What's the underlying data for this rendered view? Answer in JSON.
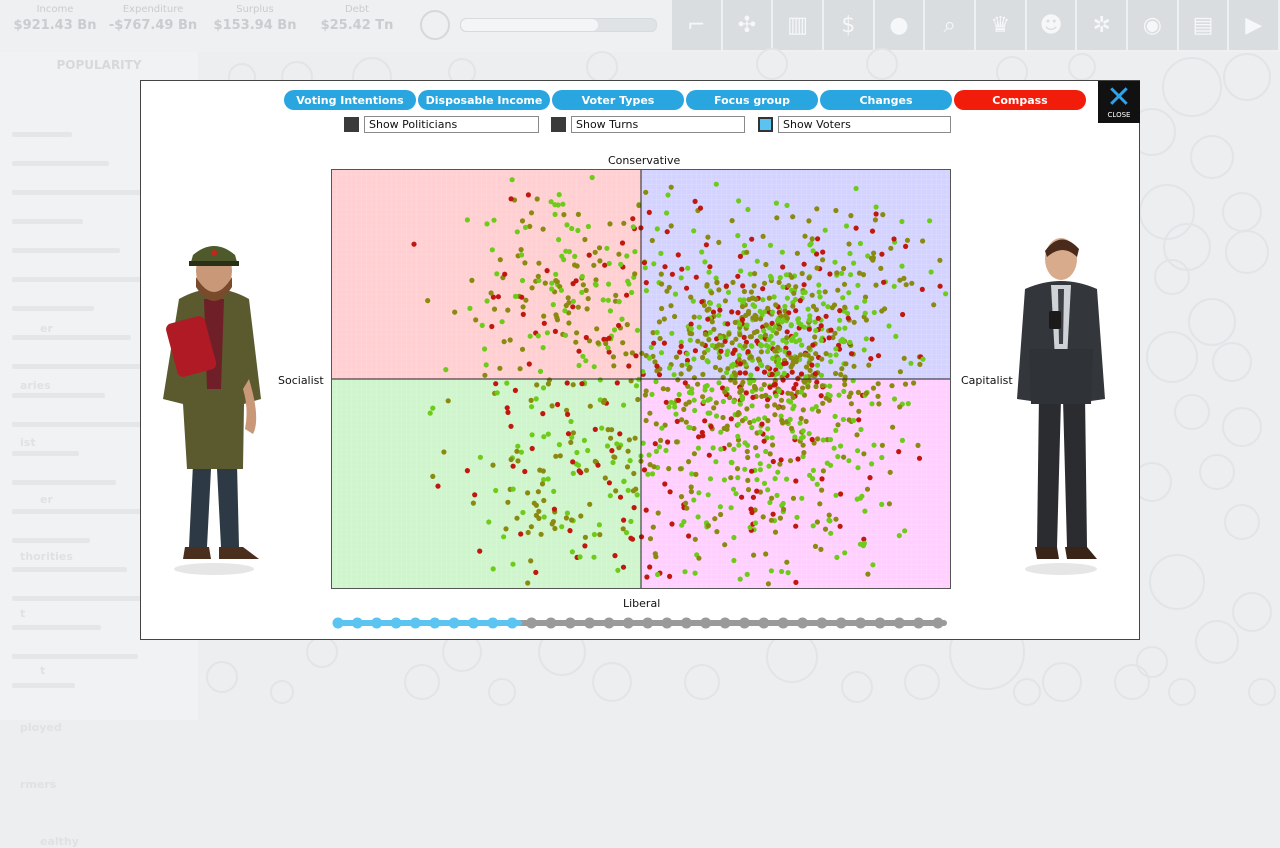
{
  "stats": [
    {
      "label": "Income",
      "value": "$921.43 Bn"
    },
    {
      "label": "Expenditure",
      "value": "-$767.49 Bn"
    },
    {
      "label": "Surplus",
      "value": "$153.94 Bn"
    },
    {
      "label": "Debt",
      "value": "$25.42 Tn"
    }
  ],
  "toolbar_icons": [
    "pistol-icon",
    "germ-icon",
    "chart-icon",
    "dollar-icon",
    "lightbulb-icon",
    "search-icon",
    "trophy-icon",
    "people-icon",
    "gear-icon",
    "lightbulb-head-icon",
    "document-icon",
    "play-icon"
  ],
  "left_panel": {
    "title": "POPULARITY",
    "items": [
      "er",
      "aries",
      "ist",
      "er",
      "thorities",
      "t",
      "t",
      "ployed",
      "rmers",
      "ealthy"
    ]
  },
  "tabs": [
    {
      "label": "Voting Intentions",
      "active": false
    },
    {
      "label": "Disposable Income",
      "active": false
    },
    {
      "label": "Voter Types",
      "active": false
    },
    {
      "label": "Focus group",
      "active": false
    },
    {
      "label": "Changes",
      "active": false
    },
    {
      "label": "Compass",
      "active": true
    }
  ],
  "close_label": "CLOSE",
  "checkboxes": [
    {
      "label": "Show Politicians",
      "checked": false
    },
    {
      "label": "Show Turns",
      "checked": false
    },
    {
      "label": "Show Voters",
      "checked": true
    }
  ],
  "compass": {
    "top_label": "Conservative",
    "bottom_label": "Liberal",
    "left_label": "Socialist",
    "right_label": "Capitalist",
    "quadrant_colors": {
      "top_left": "#ffcfd2",
      "top_right": "#d4d3ff",
      "bottom_left": "#cff5cc",
      "bottom_right": "#ffd0ff"
    },
    "dot_colors": {
      "supporter": "#6ecb1a",
      "neutral": "#8a8a10",
      "opponent": "#c0180e"
    }
  },
  "timeline": {
    "total_steps": 32,
    "filled_steps": 10,
    "filled_color": "#5cc4f0",
    "empty_color": "#9a9a9a"
  },
  "colors": {
    "tab": "#29a6e0",
    "tab_active": "#f21c0a"
  }
}
